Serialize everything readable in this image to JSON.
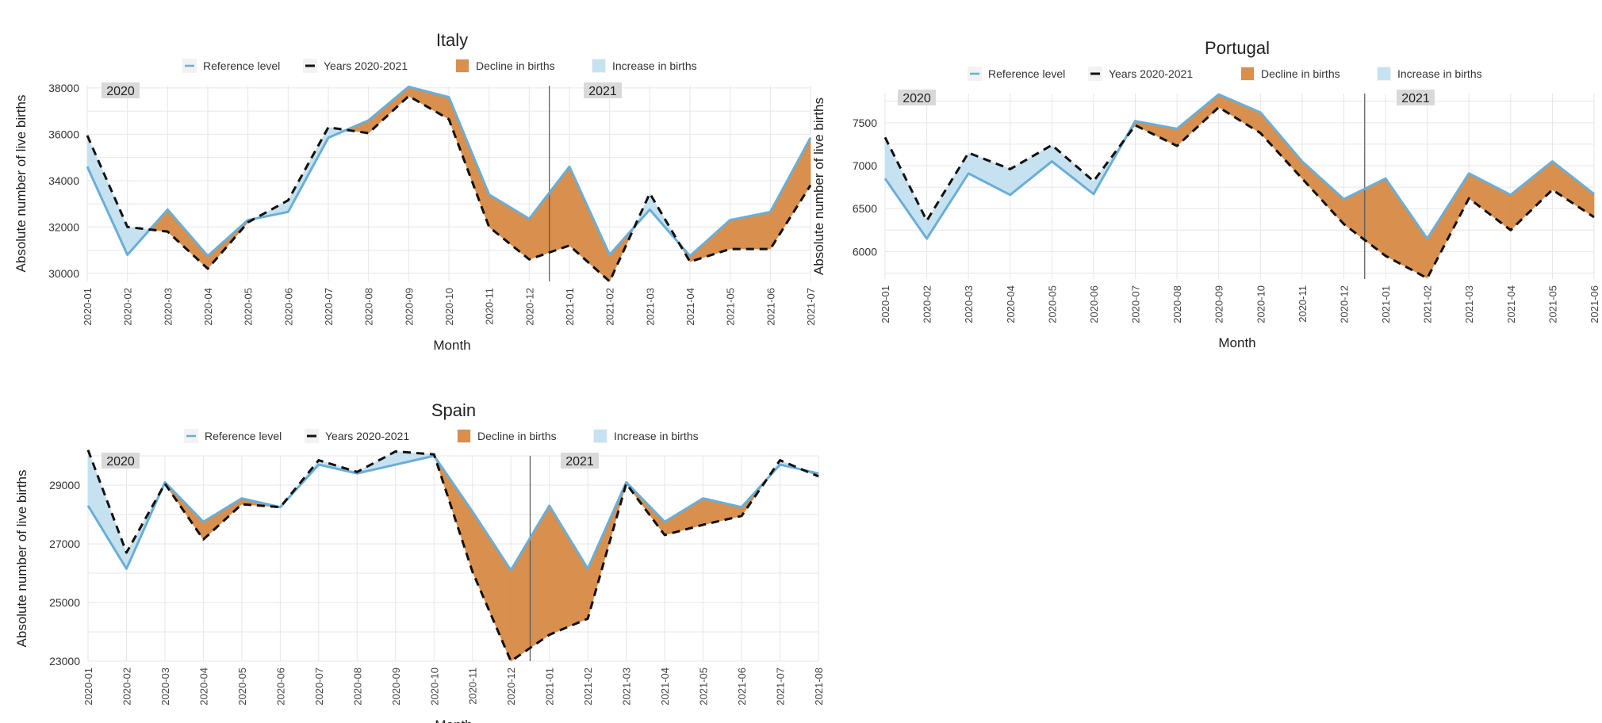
{
  "colors": {
    "reference": "#6aaed6",
    "years": "#111111",
    "decline": "#d98f4d",
    "increase": "#c6e2f1",
    "year_badge": "#d9d9d9"
  },
  "legend": {
    "reference": "Reference level",
    "years": "Years 2020-2021",
    "decline": "Decline in births",
    "increase": "Increase in births"
  },
  "chart_data": [
    {
      "type": "area",
      "title": "Italy",
      "xlabel": "Month",
      "ylabel": "Absolute number of live births",
      "x": [
        "2020-01",
        "2020-02",
        "2020-03",
        "2020-04",
        "2020-05",
        "2020-06",
        "2020-07",
        "2020-08",
        "2020-09",
        "2020-10",
        "2020-11",
        "2020-12",
        "2021-01",
        "2021-02",
        "2021-03",
        "2021-04",
        "2021-05",
        "2021-06",
        "2021-07"
      ],
      "ylim": [
        29650,
        38100
      ],
      "yticks": [
        30000,
        32000,
        34000,
        36000,
        38000
      ],
      "year_labels": [
        "2020",
        "2021"
      ],
      "series": [
        {
          "name": "Reference level",
          "values": [
            34600,
            30800,
            32750,
            30750,
            32300,
            32650,
            35850,
            36600,
            38050,
            37600,
            33400,
            32350,
            34600,
            30800,
            32750,
            30750,
            32300,
            32650,
            35850
          ]
        },
        {
          "name": "Years 2020-2021",
          "values": [
            35950,
            32000,
            31800,
            30200,
            32200,
            33150,
            36300,
            36050,
            37650,
            36650,
            32000,
            30600,
            31200,
            29650,
            33450,
            30500,
            31050,
            31050,
            33800
          ]
        }
      ]
    },
    {
      "type": "area",
      "title": "Portugal",
      "xlabel": "Month",
      "ylabel": "Absolute number of live births",
      "x": [
        "2020-01",
        "2020-02",
        "2020-03",
        "2020-04",
        "2020-05",
        "2020-06",
        "2020-07",
        "2020-08",
        "2020-09",
        "2020-10",
        "2020-11",
        "2020-12",
        "2021-01",
        "2021-02",
        "2021-03",
        "2021-04",
        "2021-05",
        "2021-06"
      ],
      "ylim": [
        5680,
        7840
      ],
      "yticks": [
        6000,
        6500,
        7000,
        7500
      ],
      "year_labels": [
        "2020",
        "2021"
      ],
      "series": [
        {
          "name": "Reference level",
          "values": [
            6850,
            6150,
            6910,
            6660,
            7050,
            6670,
            7520,
            7430,
            7830,
            7620,
            7050,
            6610,
            6850,
            6150,
            6910,
            6660,
            7050,
            6670
          ]
        },
        {
          "name": "Years 2020-2021",
          "values": [
            7330,
            6360,
            7150,
            6960,
            7240,
            6820,
            7470,
            7230,
            7680,
            7380,
            6850,
            6320,
            5950,
            5690,
            6620,
            6250,
            6720,
            6400
          ]
        }
      ]
    },
    {
      "type": "area",
      "title": "Spain",
      "xlabel": "Month",
      "ylabel": "Absolute number of live births",
      "x": [
        "2020-01",
        "2020-02",
        "2020-03",
        "2020-04",
        "2020-05",
        "2020-06",
        "2020-07",
        "2020-08",
        "2020-09",
        "2020-10",
        "2020-11",
        "2020-12",
        "2021-01",
        "2021-02",
        "2021-03",
        "2021-04",
        "2021-05",
        "2021-06",
        "2021-07",
        "2021-08"
      ],
      "ylim": [
        23000,
        30000
      ],
      "yticks": [
        23000,
        25000,
        27000,
        29000
      ],
      "year_labels": [
        "2020",
        "2021"
      ],
      "series": [
        {
          "name": "Reference level",
          "values": [
            28300,
            26150,
            29100,
            27750,
            28550,
            28250,
            29700,
            29400,
            29700,
            30000,
            28100,
            26100,
            28300,
            26150,
            29100,
            27750,
            28550,
            28250,
            29700,
            29400
          ]
        },
        {
          "name": "Years 2020-2021",
          "values": [
            30200,
            26700,
            29050,
            27150,
            28350,
            28250,
            29850,
            29450,
            30150,
            30050,
            26050,
            23000,
            23900,
            24450,
            29050,
            27300,
            27650,
            27950,
            29850,
            29300
          ]
        }
      ]
    }
  ]
}
